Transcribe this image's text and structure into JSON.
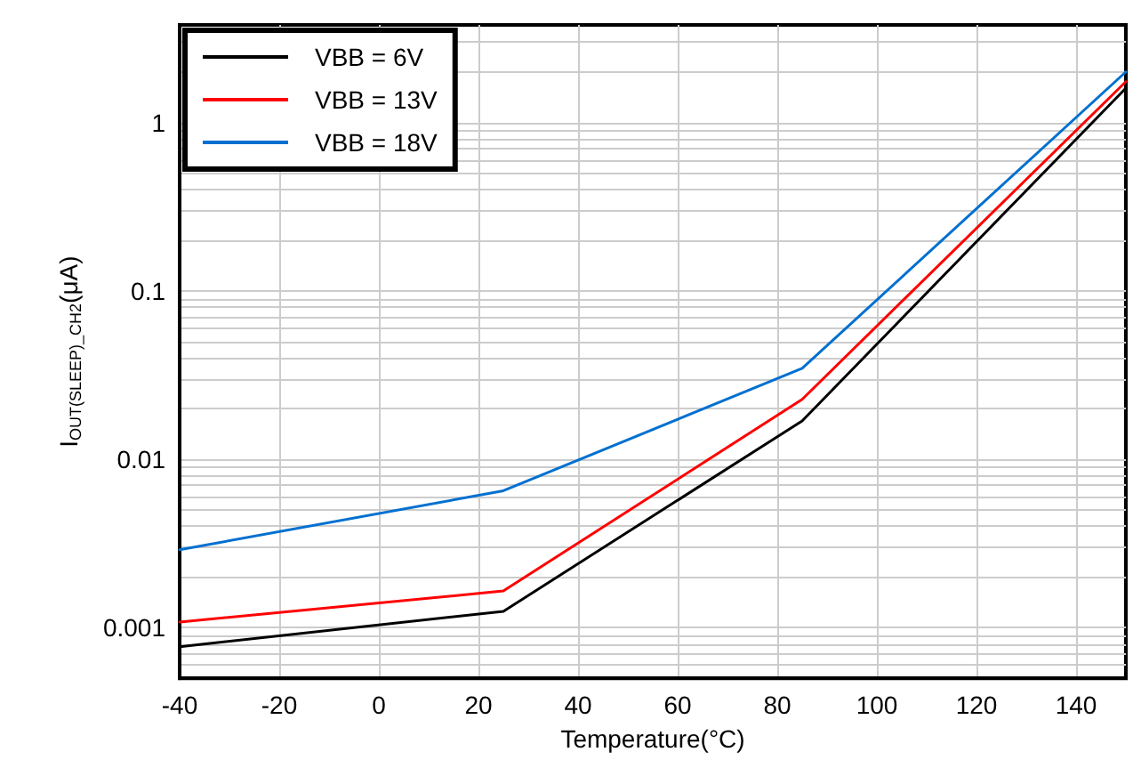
{
  "chart_data": {
    "type": "line",
    "xlabel": "Temperature(°C)",
    "ylabel": "I$_{OUT(SLEEP)_CH2}$(μA)",
    "x": [
      -40,
      25,
      85,
      150
    ],
    "series": [
      {
        "name": "VBB = 6V",
        "color": "#000000",
        "values": [
          0.00077,
          0.00125,
          0.0169,
          1.6
        ]
      },
      {
        "name": "VBB = 13V",
        "color": "#ff0000",
        "values": [
          0.00108,
          0.00165,
          0.0227,
          1.75
        ]
      },
      {
        "name": "VBB = 18V",
        "color": "#0070d0",
        "values": [
          0.0029,
          0.0065,
          0.0347,
          2.0
        ]
      }
    ],
    "xlim": [
      -40,
      150
    ],
    "xticks": [
      -40,
      -20,
      0,
      20,
      40,
      60,
      80,
      100,
      120,
      140
    ],
    "ylim": [
      0.0005,
      3.8
    ],
    "yticks": [
      0.001,
      0.01,
      0.1,
      1
    ],
    "log": "y",
    "grid": true,
    "legend": "top left",
    "marker": "none",
    "line_style": "solid"
  }
}
